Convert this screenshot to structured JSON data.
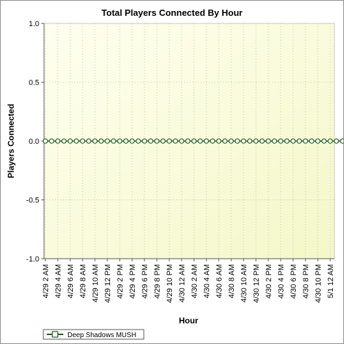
{
  "chart_data": {
    "type": "line",
    "title": "Total Players Connected By Hour",
    "xlabel": "Hour",
    "ylabel": "Players Connected",
    "ylim": [
      -1.0,
      1.0
    ],
    "yticks": [
      1.0,
      0.5,
      0.0,
      -0.5,
      -1.0
    ],
    "ytick_labels": [
      "1.0",
      "0.5",
      "0.0",
      "-0.5",
      "-1.0"
    ],
    "xtick_labels": [
      "4/29 2 AM",
      "4/29 4 AM",
      "4/29 6 AM",
      "4/29 8 AM",
      "4/29 10 AM",
      "4/29 12 PM",
      "4/29 2 PM",
      "4/29 4 PM",
      "4/29 6 PM",
      "4/29 8 PM",
      "4/29 10 PM",
      "4/30 12 AM",
      "4/30 2 AM",
      "4/30 4 AM",
      "4/30 6 AM",
      "4/30 8 AM",
      "4/30 10 AM",
      "4/30 12 PM",
      "4/30 2 PM",
      "4/30 4 PM",
      "4/30 6 PM",
      "4/30 8 PM",
      "4/30 10 PM",
      "5/1 12 AM"
    ],
    "x_points_per_tick": 2,
    "series": [
      {
        "name": "Deep Shadows MUSH",
        "color": "#1a5c1a",
        "values": [
          0,
          0,
          0,
          0,
          0,
          0,
          0,
          0,
          0,
          0,
          0,
          0,
          0,
          0,
          0,
          0,
          0,
          0,
          0,
          0,
          0,
          0,
          0,
          0,
          0,
          0,
          0,
          0,
          0,
          0,
          0,
          0,
          0,
          0,
          0,
          0,
          0,
          0,
          0,
          0,
          0,
          0,
          0,
          0,
          0,
          0,
          0,
          0,
          0
        ]
      }
    ],
    "grid": true,
    "background": "#ffffe0",
    "legend_position": "bottom-left"
  }
}
